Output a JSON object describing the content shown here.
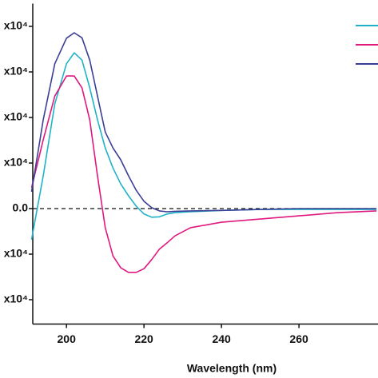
{
  "chart_data": {
    "type": "line",
    "x_label": "Wavelength (nm)",
    "x": [
      191,
      194,
      197,
      200,
      202,
      204,
      206,
      208,
      210,
      212,
      214,
      216,
      218,
      220,
      222,
      224,
      226,
      228,
      232,
      240,
      250,
      260,
      270,
      280
    ],
    "series": [
      {
        "color": "#1fb3c8",
        "values": [
          -6800,
          7200,
          23000,
          31800,
          34200,
          32600,
          26500,
          19500,
          13300,
          8900,
          5400,
          2800,
          500,
          -1200,
          -1900,
          -1800,
          -1200,
          -900,
          -700,
          -400,
          -200,
          -200,
          -200,
          -200
        ]
      },
      {
        "color": "#e0187f",
        "values": [
          4600,
          15100,
          24700,
          29100,
          29100,
          26500,
          19500,
          7200,
          -4200,
          -10400,
          -13000,
          -14000,
          -14000,
          -13200,
          -11200,
          -8900,
          -7500,
          -6000,
          -4200,
          -3000,
          -2300,
          -1600,
          -900,
          -500
        ]
      },
      {
        "color": "#3b3f95",
        "values": [
          3700,
          19500,
          31800,
          37400,
          38600,
          37500,
          32600,
          24700,
          16800,
          13300,
          10700,
          7200,
          4000,
          1600,
          200,
          -500,
          -700,
          -600,
          -500,
          -400,
          -200,
          0,
          0,
          0
        ]
      }
    ],
    "xlim": [
      191.3,
      280.4
    ],
    "xticks": [
      200,
      220,
      240,
      260
    ],
    "ylim": [
      -25000,
      45000
    ],
    "yticks": [
      {
        "value": 40000,
        "label": "x10⁴"
      },
      {
        "value": 30000,
        "label": "x10⁴"
      },
      {
        "value": 20000,
        "label": "x10⁴"
      },
      {
        "value": 10000,
        "label": "x10⁴"
      },
      {
        "value": 0,
        "label": "0.0"
      },
      {
        "value": -10000,
        "label": "x10⁴"
      },
      {
        "value": -20000,
        "label": "x10⁴"
      }
    ],
    "zero_line": true
  }
}
